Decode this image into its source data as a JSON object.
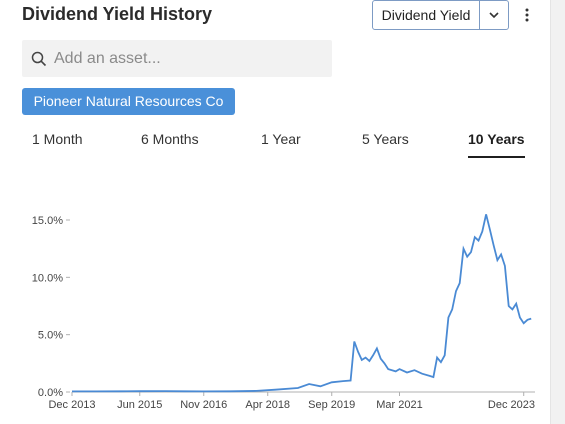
{
  "header": {
    "title": "Dividend Yield History",
    "metric_select": "Dividend Yield",
    "more_icon": "kebab-menu-icon"
  },
  "search": {
    "placeholder": "Add an asset...",
    "value": "",
    "icon": "search-icon"
  },
  "asset_tag": "Pioneer Natural Resources Co",
  "tabs": [
    {
      "label": "1 Month",
      "active": false
    },
    {
      "label": "6 Months",
      "active": false
    },
    {
      "label": "1 Year",
      "active": false
    },
    {
      "label": "5 Years",
      "active": false
    },
    {
      "label": "10 Years",
      "active": true
    }
  ],
  "colors": {
    "accent": "#4a90d9",
    "line": "#4a8ad4",
    "axis": "#b0b0b0"
  },
  "chart_data": {
    "type": "line",
    "title": "",
    "xlabel": "",
    "ylabel": "",
    "x_ticks": [
      "Dec 2013",
      "Jun 2015",
      "Nov 2016",
      "Apr 2018",
      "Sep 2019",
      "Mar 2021",
      "Dec 2023"
    ],
    "y_ticks": [
      "0.0%",
      "5.0%",
      "10.0%",
      "15.0%"
    ],
    "ylim": [
      0,
      16
    ],
    "xlim": [
      "2013-12",
      "2024-03"
    ],
    "grid": false,
    "series": [
      {
        "name": "",
        "points": [
          [
            "2013-12",
            0.05
          ],
          [
            "2014-06",
            0.05
          ],
          [
            "2015-01",
            0.06
          ],
          [
            "2015-06",
            0.07
          ],
          [
            "2016-01",
            0.08
          ],
          [
            "2016-06",
            0.06
          ],
          [
            "2016-11",
            0.05
          ],
          [
            "2017-06",
            0.06
          ],
          [
            "2018-01",
            0.1
          ],
          [
            "2018-06",
            0.2
          ],
          [
            "2018-12",
            0.35
          ],
          [
            "2019-03",
            0.7
          ],
          [
            "2019-06",
            0.5
          ],
          [
            "2019-09",
            0.85
          ],
          [
            "2019-12",
            0.95
          ],
          [
            "2020-02",
            1.0
          ],
          [
            "2020-03",
            4.4
          ],
          [
            "2020-04",
            3.5
          ],
          [
            "2020-05",
            2.8
          ],
          [
            "2020-06",
            3.0
          ],
          [
            "2020-07",
            2.7
          ],
          [
            "2020-08",
            3.2
          ],
          [
            "2020-09",
            3.8
          ],
          [
            "2020-10",
            2.9
          ],
          [
            "2020-11",
            2.5
          ],
          [
            "2020-12",
            2.0
          ],
          [
            "2021-02",
            1.8
          ],
          [
            "2021-03",
            2.0
          ],
          [
            "2021-05",
            1.7
          ],
          [
            "2021-07",
            1.9
          ],
          [
            "2021-09",
            1.6
          ],
          [
            "2021-11",
            1.4
          ],
          [
            "2021-12",
            1.3
          ],
          [
            "2022-01",
            3.0
          ],
          [
            "2022-02",
            2.6
          ],
          [
            "2022-03",
            3.2
          ],
          [
            "2022-04",
            6.5
          ],
          [
            "2022-05",
            7.2
          ],
          [
            "2022-06",
            8.8
          ],
          [
            "2022-07",
            9.5
          ],
          [
            "2022-08",
            12.5
          ],
          [
            "2022-09",
            11.8
          ],
          [
            "2022-10",
            12.2
          ],
          [
            "2022-11",
            13.5
          ],
          [
            "2022-12",
            13.2
          ],
          [
            "2023-01",
            14.0
          ],
          [
            "2023-02",
            15.5
          ],
          [
            "2023-03",
            14.2
          ],
          [
            "2023-04",
            12.8
          ],
          [
            "2023-05",
            11.5
          ],
          [
            "2023-06",
            12.0
          ],
          [
            "2023-07",
            11.0
          ],
          [
            "2023-08",
            7.5
          ],
          [
            "2023-09",
            7.2
          ],
          [
            "2023-10",
            7.7
          ],
          [
            "2023-11",
            6.5
          ],
          [
            "2023-12",
            6.0
          ],
          [
            "2024-01",
            6.3
          ],
          [
            "2024-02",
            6.4
          ]
        ]
      }
    ]
  }
}
